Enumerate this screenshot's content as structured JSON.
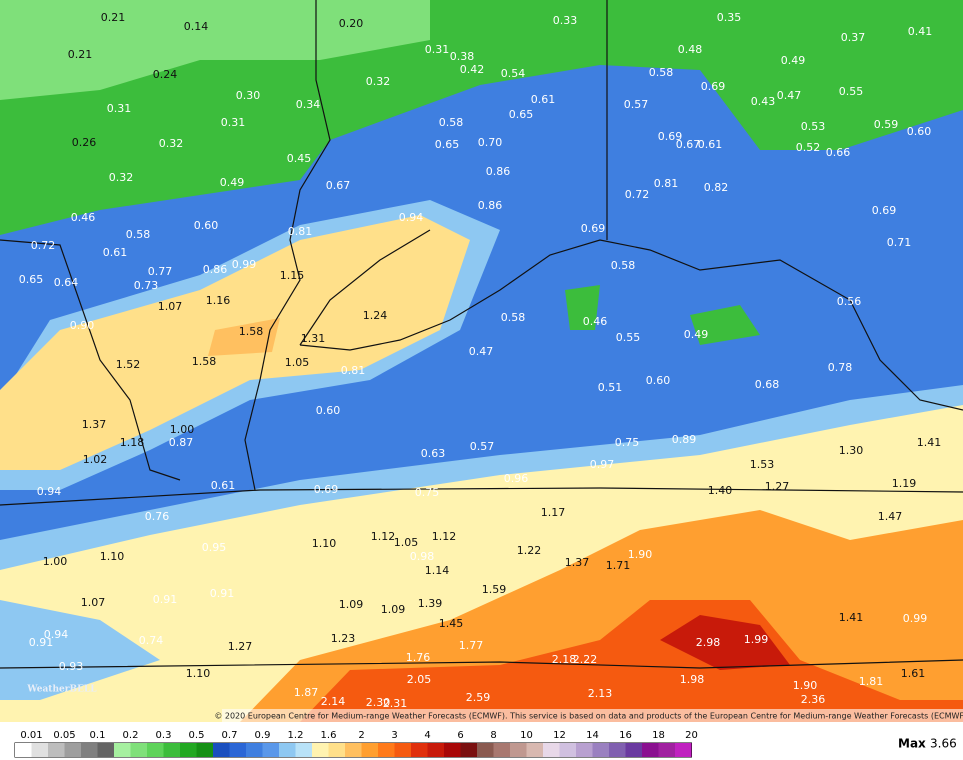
{
  "map": {
    "labels": [
      "0.21",
      "0.14",
      "0.20",
      "0.33",
      "0.35",
      "0.37",
      "0.41",
      "0.21",
      "0.31",
      "0.38",
      "0.48",
      "0.49",
      "0.24",
      "0.42",
      "0.54",
      "0.32",
      "0.58",
      "0.30",
      "0.34",
      "0.69",
      "0.55",
      "0.43",
      "0.47",
      "0.61",
      "0.57",
      "0.31",
      "0.31",
      "0.58",
      "0.65",
      "0.53",
      "0.59",
      "0.60",
      "0.26",
      "0.32",
      "0.65",
      "0.70",
      "0.69",
      "0.67",
      "0.61",
      "0.52",
      "0.66",
      "0.45",
      "0.86",
      "0.32",
      "0.49",
      "0.67",
      "0.81",
      "0.82",
      "0.72",
      "0.86",
      "0.69",
      "0.46",
      "0.94",
      "0.60",
      "0.81",
      "0.58",
      "0.69",
      "0.71",
      "0.72",
      "0.61",
      "0.99",
      "0.86",
      "0.77",
      "0.58",
      "1.15",
      "0.65",
      "0.64",
      "0.73",
      "1.16",
      "1.07",
      "0.56",
      "1.24",
      "0.58",
      "0.46",
      "0.90",
      "1.58",
      "1.31",
      "0.55",
      "0.49",
      "0.47",
      "1.52",
      "1.58",
      "1.05",
      "0.81",
      "0.78",
      "0.51",
      "0.60",
      "0.68",
      "0.60",
      "1.37",
      "1.00",
      "0.87",
      "1.18",
      "0.75",
      "0.89",
      "1.41",
      "0.57",
      "0.63",
      "1.30",
      "1.02",
      "1.53",
      "0.97",
      "0.96",
      "0.61",
      "0.69",
      "1.27",
      "1.19",
      "0.94",
      "0.75",
      "1.40",
      "1.17",
      "0.76",
      "1.47",
      "1.12",
      "1.05",
      "1.12",
      "1.10",
      "0.95",
      "1.22",
      "0.98",
      "1.90",
      "1.00",
      "1.10",
      "1.37",
      "1.71",
      "1.14",
      "1.59",
      "1.07",
      "0.91",
      "0.91",
      "1.09",
      "1.09",
      "1.39",
      "1.45",
      "1.41",
      "0.99",
      "0.94",
      "0.74",
      "1.23",
      "1.27",
      "0.91",
      "1.77",
      "2.98",
      "1.99",
      "1.76",
      "2.18",
      "2.22",
      "0.93",
      "1.10",
      "2.05",
      "1.98",
      "1.90",
      "1.81",
      "1.61",
      "1.87",
      "2.13",
      "2.14",
      "2.30",
      "2.31",
      "2.59",
      "2.36"
    ]
  },
  "logo": "WeatherBELL",
  "copyright": "© 2020 European Centre for Medium-range Weather Forecasts (ECMWF). This service is based on data and products of the European Centre for Medium-range Weather Forecasts (ECMWF).",
  "legend": {
    "ticks": [
      "0.01",
      "0.05",
      "0.1",
      "0.2",
      "0.3",
      "0.5",
      "0.7",
      "0.9",
      "1.2",
      "1.6",
      "2",
      "3",
      "4",
      "6",
      "8",
      "10",
      "12",
      "14",
      "16",
      "18",
      "20"
    ]
  },
  "max": {
    "label": "Max",
    "value": "3.66"
  }
}
